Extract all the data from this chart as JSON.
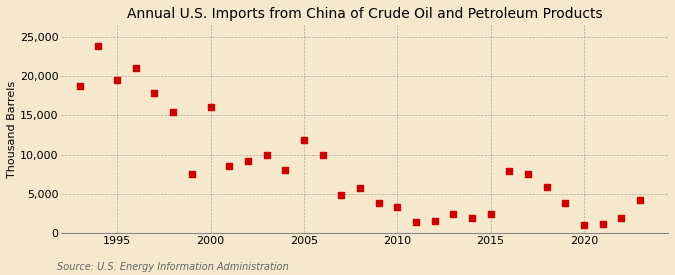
{
  "title": "Annual U.S. Imports from China of Crude Oil and Petroleum Products",
  "ylabel": "Thousand Barrels",
  "source": "Source: U.S. Energy Information Administration",
  "background_color": "#f5e8cc",
  "plot_background_color": "#f5e8cc",
  "grid_color": "#999999",
  "dot_color": "#cc0000",
  "years": [
    1993,
    1994,
    1995,
    1996,
    1997,
    1998,
    1999,
    2000,
    2001,
    2002,
    2003,
    2004,
    2005,
    2006,
    2007,
    2008,
    2009,
    2010,
    2011,
    2012,
    2013,
    2014,
    2015,
    2016,
    2017,
    2018,
    2019,
    2020,
    2021,
    2022,
    2023
  ],
  "values": [
    18700,
    23800,
    19500,
    21000,
    17900,
    15400,
    7600,
    16100,
    8600,
    9200,
    9900,
    8000,
    11800,
    10000,
    4900,
    5800,
    3900,
    3300,
    1400,
    1600,
    2500,
    2000,
    2400,
    7900,
    7600,
    5900,
    3800,
    1000,
    1200,
    2000,
    4200
  ],
  "xlim": [
    1992,
    2024.5
  ],
  "ylim": [
    0,
    26500
  ],
  "yticks": [
    0,
    5000,
    10000,
    15000,
    20000,
    25000
  ],
  "xticks": [
    1995,
    2000,
    2005,
    2010,
    2015,
    2020
  ],
  "title_fontsize": 10,
  "label_fontsize": 8,
  "tick_fontsize": 8,
  "source_fontsize": 7,
  "marker_size": 22
}
